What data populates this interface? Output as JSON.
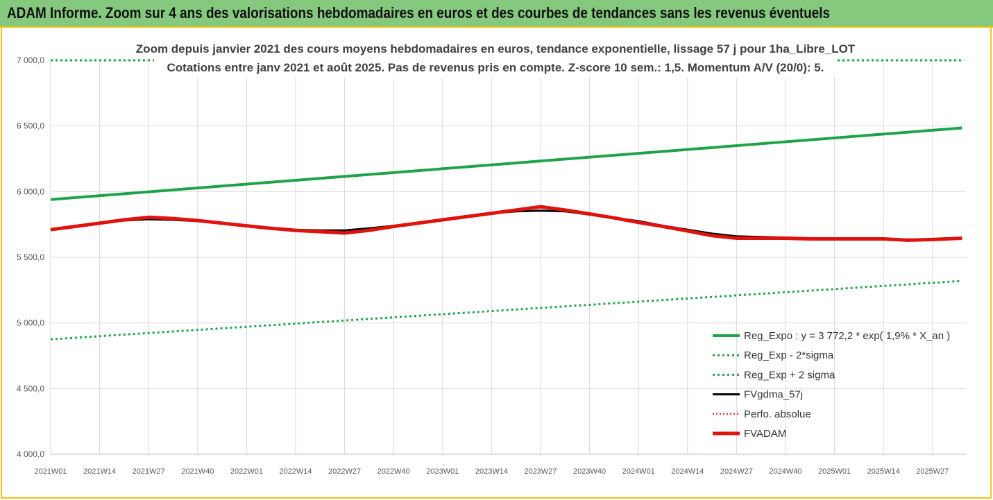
{
  "header": {
    "title": "ADAM Informe. Zoom sur 4 ans des valorisations hebdomadaires en euros et des courbes de tendances sans les revenus éventuels"
  },
  "chart_data": {
    "type": "line",
    "title": "Zoom depuis janvier 2021 des cours moyens hebdomadaires en euros, tendance exponentielle, lissage 57 j pour 1ha_Libre_LOT",
    "subtitle": "Cotations entre janv 2021 et août 2025.  Pas de revenus pris en compte. Z-score 10 sem.: 1,5. Momentum A/V (20/0): 5.",
    "ylim": [
      4000,
      7000
    ],
    "y_ticks": [
      "4 000,0",
      "4 500,0",
      "5 000,0",
      "5 500,0",
      "6 000,0",
      "6 500,0",
      "7 000,0"
    ],
    "y_tick_values": [
      4000,
      4500,
      5000,
      5500,
      6000,
      6500,
      7000
    ],
    "x_ticks": [
      "2021W01",
      "2021W14",
      "2021W27",
      "2021W40",
      "2022W01",
      "2022W14",
      "2022W27",
      "2022W40",
      "2023W01",
      "2023W14",
      "2023W27",
      "2023W40",
      "2024W01",
      "2024W14",
      "2024W27",
      "2024W40",
      "2025W01",
      "2025W14",
      "2025W27"
    ],
    "x_index_range": [
      0,
      18.6
    ],
    "grid": true,
    "legend_position": "bottom-right",
    "series": [
      {
        "name": "Reg_Expo : y = 3 772,2 * exp( 1,9% *  X_an )",
        "color": "#1fa34a",
        "style": "solid",
        "width": 4,
        "x": [
          0,
          18.6
        ],
        "y": [
          5940,
          6485
        ]
      },
      {
        "name": "Reg_Exp - 2*sigma",
        "color": "#1fa34a",
        "style": "dotted",
        "width": 3,
        "x": [
          0,
          18.6
        ],
        "y": [
          4875,
          5320
        ]
      },
      {
        "name": "Reg_Exp + 2 sigma",
        "color": "#1fa34a",
        "style": "dotted",
        "width": 3,
        "x": [
          0,
          18.6
        ],
        "y": [
          7000,
          7000
        ]
      },
      {
        "name": "FVgdma_57j",
        "color": "#000000",
        "style": "solid",
        "width": 3,
        "x": [
          0,
          0.5,
          1,
          1.5,
          2,
          2.5,
          3,
          3.5,
          4,
          4.5,
          5,
          5.5,
          6,
          6.5,
          7,
          7.5,
          8,
          8.5,
          9,
          9.5,
          10,
          10.5,
          11,
          11.5,
          12,
          12.5,
          13,
          13.5,
          14,
          14.5,
          15,
          15.5,
          16,
          16.5,
          17,
          17.5,
          18,
          18.6
        ],
        "y": [
          5710,
          5735,
          5760,
          5780,
          5790,
          5785,
          5775,
          5760,
          5740,
          5725,
          5710,
          5705,
          5705,
          5720,
          5740,
          5765,
          5790,
          5815,
          5835,
          5850,
          5855,
          5850,
          5825,
          5800,
          5775,
          5740,
          5710,
          5680,
          5660,
          5655,
          5650,
          5645,
          5640,
          5640,
          5640,
          5635,
          5635,
          5645
        ]
      },
      {
        "name": "Perfo. absolue",
        "color": "#e0120e",
        "style": "dotted",
        "width": 2,
        "x": [
          0,
          0.5,
          1,
          1.5,
          2,
          2.5,
          3,
          3.5,
          4,
          4.5,
          5,
          5.5,
          6,
          6.5,
          7,
          7.5,
          8,
          8.5,
          9,
          9.5,
          10,
          10.5,
          11,
          11.5,
          12,
          12.5,
          13,
          13.5,
          14,
          14.5,
          15,
          15.5,
          16,
          16.5,
          17,
          17.5,
          18,
          18.6
        ],
        "y": [
          5710,
          5735,
          5760,
          5785,
          5805,
          5795,
          5780,
          5760,
          5740,
          5720,
          5705,
          5695,
          5685,
          5705,
          5735,
          5760,
          5785,
          5810,
          5835,
          5860,
          5885,
          5860,
          5830,
          5800,
          5765,
          5735,
          5700,
          5665,
          5645,
          5645,
          5645,
          5640,
          5640,
          5640,
          5640,
          5630,
          5635,
          5645
        ]
      },
      {
        "name": "FVADAM",
        "color": "#e0120e",
        "style": "solid",
        "width": 5,
        "x": [
          0,
          0.5,
          1,
          1.5,
          2,
          2.5,
          3,
          3.5,
          4,
          4.5,
          5,
          5.5,
          6,
          6.5,
          7,
          7.5,
          8,
          8.5,
          9,
          9.5,
          10,
          10.5,
          11,
          11.5,
          12,
          12.5,
          13,
          13.5,
          14,
          14.5,
          15,
          15.5,
          16,
          16.5,
          17,
          17.5,
          18,
          18.6
        ],
        "y": [
          5710,
          5735,
          5760,
          5785,
          5805,
          5795,
          5780,
          5760,
          5740,
          5720,
          5705,
          5695,
          5685,
          5705,
          5735,
          5760,
          5785,
          5810,
          5835,
          5860,
          5885,
          5860,
          5830,
          5800,
          5765,
          5735,
          5700,
          5665,
          5645,
          5645,
          5645,
          5640,
          5640,
          5640,
          5640,
          5630,
          5635,
          5645
        ]
      }
    ]
  }
}
